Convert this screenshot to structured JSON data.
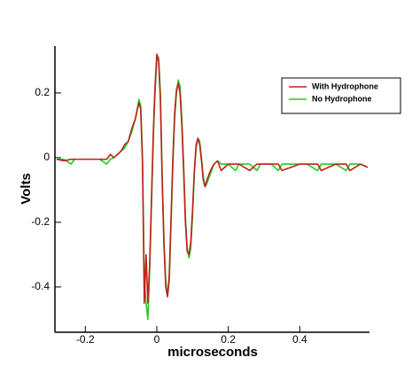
{
  "chart_data": {
    "type": "line",
    "xlabel": "microseconds",
    "ylabel": "Volts",
    "x": [
      -0.28,
      -0.26,
      -0.24,
      -0.23,
      -0.2,
      -0.18,
      -0.16,
      -0.14,
      -0.13,
      -0.12,
      -0.11,
      -0.1,
      -0.09,
      -0.08,
      -0.07,
      -0.06,
      -0.05,
      -0.045,
      -0.04,
      -0.035,
      -0.03,
      -0.025,
      -0.02,
      -0.015,
      -0.01,
      -0.005,
      0,
      0.005,
      0.01,
      0.015,
      0.02,
      0.025,
      0.03,
      0.035,
      0.04,
      0.045,
      0.05,
      0.055,
      0.06,
      0.065,
      0.07,
      0.075,
      0.08,
      0.085,
      0.09,
      0.095,
      0.1,
      0.105,
      0.11,
      0.115,
      0.12,
      0.125,
      0.13,
      0.135,
      0.14,
      0.15,
      0.16,
      0.17,
      0.18,
      0.2,
      0.22,
      0.23,
      0.26,
      0.28,
      0.29,
      0.32,
      0.34,
      0.35,
      0.4,
      0.42,
      0.45,
      0.46,
      0.5,
      0.53,
      0.54,
      0.57,
      0.59
    ],
    "series": [
      {
        "name": "With Hydrophone",
        "color": "#c0201c",
        "values": [
          -0.005,
          -0.01,
          -0.005,
          -0.005,
          -0.005,
          -0.005,
          -0.005,
          -0.005,
          0.01,
          0,
          0.01,
          0.02,
          0.04,
          0.05,
          0.09,
          0.12,
          0.17,
          0.15,
          -0.02,
          -0.45,
          -0.3,
          -0.45,
          -0.33,
          -0.13,
          0.07,
          0.22,
          0.32,
          0.3,
          0.18,
          -0.07,
          -0.27,
          -0.4,
          -0.43,
          -0.36,
          -0.18,
          0,
          0.14,
          0.21,
          0.23,
          0.2,
          0.1,
          -0.04,
          -0.2,
          -0.29,
          -0.3,
          -0.26,
          -0.16,
          -0.04,
          0.04,
          0.06,
          0.04,
          -0.01,
          -0.07,
          -0.09,
          -0.07,
          -0.04,
          -0.02,
          -0.01,
          -0.04,
          -0.02,
          -0.02,
          -0.02,
          -0.04,
          -0.02,
          -0.02,
          -0.02,
          -0.02,
          -0.04,
          -0.02,
          -0.02,
          -0.02,
          -0.04,
          -0.02,
          -0.02,
          -0.04,
          -0.02,
          -0.03
        ]
      },
      {
        "name": "No Hydrophone",
        "color": "#22cc22",
        "values": [
          -0.005,
          -0.005,
          -0.02,
          -0.005,
          -0.005,
          -0.005,
          -0.005,
          -0.02,
          -0.005,
          0,
          0.01,
          0.02,
          0.03,
          0.05,
          0.08,
          0.12,
          0.18,
          0.16,
          0,
          -0.38,
          -0.45,
          -0.5,
          -0.35,
          -0.15,
          0.05,
          0.2,
          0.3,
          0.31,
          0.2,
          -0.05,
          -0.25,
          -0.38,
          -0.43,
          -0.38,
          -0.2,
          -0.02,
          0.12,
          0.2,
          0.24,
          0.22,
          0.12,
          -0.02,
          -0.18,
          -0.28,
          -0.31,
          -0.28,
          -0.18,
          -0.05,
          0.03,
          0.06,
          0.05,
          0,
          -0.06,
          -0.09,
          -0.08,
          -0.05,
          -0.02,
          -0.01,
          -0.02,
          -0.02,
          -0.04,
          -0.02,
          -0.02,
          -0.04,
          -0.02,
          -0.02,
          -0.04,
          -0.02,
          -0.02,
          -0.02,
          -0.04,
          -0.02,
          -0.02,
          -0.04,
          -0.02,
          -0.02,
          -0.03
        ]
      }
    ],
    "xlim": [
      -0.285,
      0.595
    ],
    "xticks": [
      -0.2,
      0,
      0.2,
      0.4
    ],
    "ylim": [
      -0.54,
      0.345
    ],
    "yticks": [
      -0.4,
      -0.2,
      0,
      0.2
    ],
    "grid": false,
    "legend": "upper right"
  }
}
